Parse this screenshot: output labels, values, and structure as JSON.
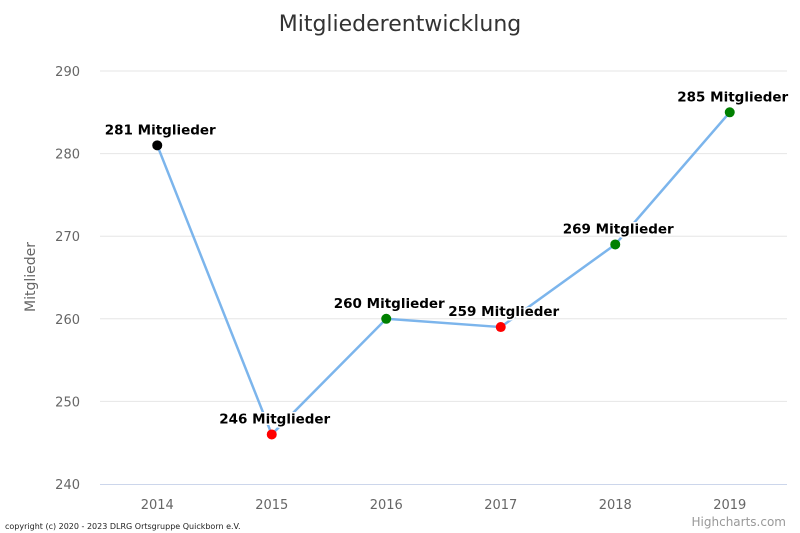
{
  "chart_data": {
    "type": "line",
    "title": "Mitgliederentwicklung",
    "ylabel": "Mitglieder",
    "xlabel": "",
    "categories": [
      "2014",
      "2015",
      "2016",
      "2017",
      "2018",
      "2019"
    ],
    "series": [
      {
        "values": [
          281,
          246,
          260,
          259,
          269,
          285
        ]
      }
    ],
    "data_labels": [
      "281 Mitglieder",
      "246 Mitglieder",
      "260 Mitglieder",
      "259 Mitglieder",
      "269 Mitglieder",
      "285 Mitglieder"
    ],
    "point_colors": [
      "#000000",
      "#ff0000",
      "#008000",
      "#ff0000",
      "#008000",
      "#008000"
    ],
    "line_color": "#7cb5ec",
    "ylim": [
      240,
      290
    ],
    "yticks": [
      240,
      250,
      260,
      270,
      280,
      290
    ],
    "grid": true,
    "legend": "none"
  },
  "credits": "Highcharts.com",
  "copyright": "copyright (c) 2020 - 2023 DLRG Ortsgruppe Quickborn e.V."
}
